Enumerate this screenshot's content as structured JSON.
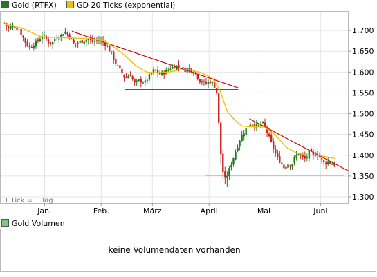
{
  "chart_data": {
    "type": "candlestick",
    "price_panel": {
      "legend": [
        {
          "label": "Gold (RTFX)",
          "color": "#1e7b1e"
        },
        {
          "label": "GD 20 Ticks (exponential)",
          "color": "#f2c000"
        }
      ],
      "x_tick_labels": [
        "Jan.",
        "Feb.",
        "März",
        "April",
        "Mai",
        "Juni"
      ],
      "x_ticks_at_day": [
        12,
        43,
        71,
        102,
        132,
        163
      ],
      "y_tick_labels": [
        "1.700",
        "1.650",
        "1.600",
        "1.550",
        "1.500",
        "1.450",
        "1.400",
        "1.350",
        "1.300"
      ],
      "y_ticks": [
        1.7,
        1.65,
        1.6,
        1.55,
        1.5,
        1.45,
        1.4,
        1.35,
        1.3
      ],
      "ylim": [
        1.285,
        1.745
      ],
      "x_range_days": [
        -12,
        178
      ],
      "note": "1 Tick = 1 Tag",
      "close_series": [
        [
          -10,
          1.718
        ],
        [
          -8,
          1.705
        ],
        [
          -5,
          1.712
        ],
        [
          -2,
          1.702
        ],
        [
          0,
          1.685
        ],
        [
          2,
          1.668
        ],
        [
          4,
          1.66
        ],
        [
          7,
          1.67
        ],
        [
          9,
          1.678
        ],
        [
          11,
          1.69
        ],
        [
          14,
          1.672
        ],
        [
          16,
          1.668
        ],
        [
          18,
          1.682
        ],
        [
          21,
          1.688
        ],
        [
          23,
          1.698
        ],
        [
          25,
          1.69
        ],
        [
          28,
          1.668
        ],
        [
          30,
          1.67
        ],
        [
          33,
          1.675
        ],
        [
          36,
          1.68
        ],
        [
          38,
          1.672
        ],
        [
          41,
          1.677
        ],
        [
          43,
          1.675
        ],
        [
          46,
          1.665
        ],
        [
          49,
          1.64
        ],
        [
          51,
          1.62
        ],
        [
          54,
          1.6
        ],
        [
          56,
          1.585
        ],
        [
          59,
          1.595
        ],
        [
          61,
          1.572
        ],
        [
          64,
          1.58
        ],
        [
          67,
          1.575
        ],
        [
          70,
          1.595
        ],
        [
          72,
          1.605
        ],
        [
          75,
          1.595
        ],
        [
          78,
          1.6
        ],
        [
          81,
          1.61
        ],
        [
          84,
          1.615
        ],
        [
          86,
          1.612
        ],
        [
          89,
          1.605
        ],
        [
          91,
          1.61
        ],
        [
          94,
          1.6
        ],
        [
          97,
          1.58
        ],
        [
          100,
          1.572
        ],
        [
          103,
          1.578
        ],
        [
          106,
          1.56
        ],
        [
          107,
          1.5
        ],
        [
          108,
          1.42
        ],
        [
          110,
          1.345
        ],
        [
          111,
          1.342
        ],
        [
          113,
          1.365
        ],
        [
          115,
          1.39
        ],
        [
          117,
          1.415
        ],
        [
          119,
          1.44
        ],
        [
          121,
          1.455
        ],
        [
          123,
          1.47
        ],
        [
          125,
          1.478
        ],
        [
          127,
          1.472
        ],
        [
          129,
          1.47
        ],
        [
          131,
          1.478
        ],
        [
          133,
          1.465
        ],
        [
          135,
          1.44
        ],
        [
          137,
          1.42
        ],
        [
          139,
          1.395
        ],
        [
          141,
          1.385
        ],
        [
          143,
          1.37
        ],
        [
          145,
          1.38
        ],
        [
          147,
          1.375
        ],
        [
          149,
          1.395
        ],
        [
          151,
          1.405
        ],
        [
          153,
          1.395
        ],
        [
          155,
          1.39
        ],
        [
          157,
          1.41
        ],
        [
          159,
          1.398
        ],
        [
          161,
          1.405
        ],
        [
          163,
          1.392
        ],
        [
          165,
          1.38
        ],
        [
          167,
          1.385
        ],
        [
          169,
          1.38
        ],
        [
          171,
          1.378
        ]
      ],
      "ema20_series": [
        [
          -10,
          1.716
        ],
        [
          0,
          1.705
        ],
        [
          10,
          1.685
        ],
        [
          20,
          1.683
        ],
        [
          28,
          1.682
        ],
        [
          36,
          1.68
        ],
        [
          44,
          1.676
        ],
        [
          50,
          1.66
        ],
        [
          56,
          1.64
        ],
        [
          62,
          1.615
        ],
        [
          68,
          1.6
        ],
        [
          74,
          1.598
        ],
        [
          80,
          1.6
        ],
        [
          86,
          1.605
        ],
        [
          92,
          1.605
        ],
        [
          98,
          1.598
        ],
        [
          104,
          1.585
        ],
        [
          108,
          1.555
        ],
        [
          112,
          1.505
        ],
        [
          116,
          1.485
        ],
        [
          120,
          1.47
        ],
        [
          126,
          1.468
        ],
        [
          132,
          1.468
        ],
        [
          138,
          1.45
        ],
        [
          144,
          1.42
        ],
        [
          150,
          1.405
        ],
        [
          156,
          1.4
        ],
        [
          162,
          1.4
        ],
        [
          171,
          1.392
        ]
      ],
      "trendlines": [
        {
          "kind": "resistance",
          "color": "#cc0000",
          "from": [
            27,
            1.698
          ],
          "to": [
            118,
            1.562
          ]
        },
        {
          "kind": "resistance",
          "color": "#cc0000",
          "from": [
            124,
            1.488
          ],
          "to": [
            178,
            1.363
          ]
        },
        {
          "kind": "support",
          "color": "#1e7b1e",
          "from": [
            56,
            1.558
          ],
          "to": [
            118,
            1.558
          ]
        },
        {
          "kind": "support",
          "color": "#1e7b1e",
          "from": [
            100,
            1.352
          ],
          "to": [
            176,
            1.352
          ]
        }
      ]
    },
    "volume_panel": {
      "legend": {
        "label": "Gold Volumen",
        "color": "#7fc77f"
      },
      "message": "keine Volumendaten vorhanden"
    }
  },
  "colors": {
    "up": "#1e7b1e",
    "down": "#cc2222",
    "ema": "#f2c000",
    "grid": "#e4e4e4",
    "axis": "#999999"
  }
}
